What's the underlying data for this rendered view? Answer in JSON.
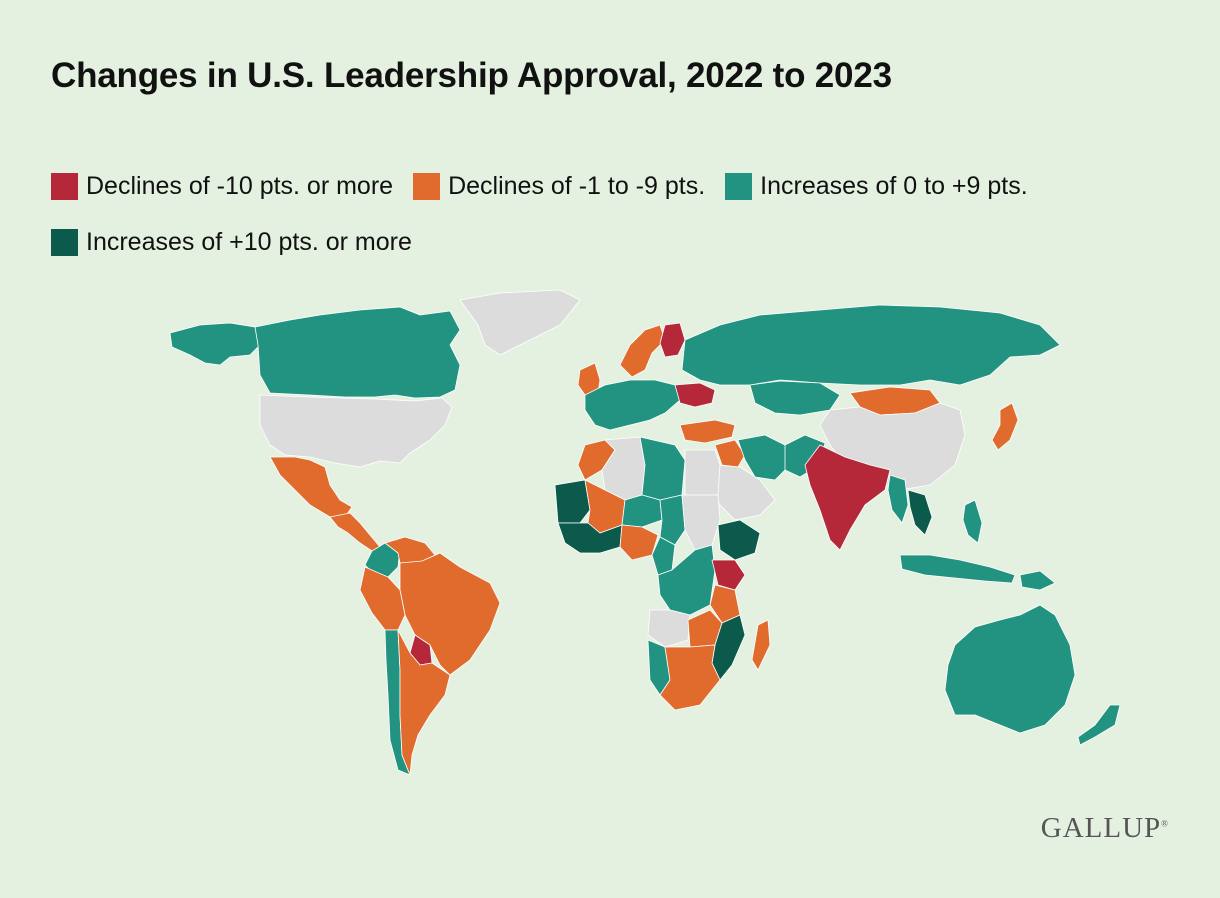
{
  "title": "Changes in U.S. Leadership Approval, 2022 to 2023",
  "legend": [
    {
      "label": "Declines of -10 pts. or more",
      "color": "#b5283a"
    },
    {
      "label": "Declines of -1 to -9 pts.",
      "color": "#e06b2d"
    },
    {
      "label": "Increases of 0 to +9 pts.",
      "color": "#219380"
    },
    {
      "label": "Increases of +10 pts. or more",
      "color": "#0b5a4c"
    }
  ],
  "no_data_color": "#dcdcdc",
  "logo": "GALLUP",
  "regions": [
    {
      "name": "alaska",
      "category": "increase_small"
    },
    {
      "name": "canada",
      "category": "increase_small"
    },
    {
      "name": "united-states",
      "category": "no_data"
    },
    {
      "name": "greenland",
      "category": "no_data"
    },
    {
      "name": "mexico",
      "category": "decline_small"
    },
    {
      "name": "central-america",
      "category": "decline_small"
    },
    {
      "name": "colombia",
      "category": "increase_small"
    },
    {
      "name": "venezuela",
      "category": "decline_small"
    },
    {
      "name": "brazil",
      "category": "decline_small"
    },
    {
      "name": "peru",
      "category": "decline_small"
    },
    {
      "name": "paraguay",
      "category": "decline_large"
    },
    {
      "name": "chile",
      "category": "increase_small"
    },
    {
      "name": "argentina",
      "category": "decline_small"
    },
    {
      "name": "united-kingdom",
      "category": "decline_small"
    },
    {
      "name": "scandinavia",
      "category": "decline_small"
    },
    {
      "name": "finland",
      "category": "decline_large"
    },
    {
      "name": "western-europe",
      "category": "increase_small"
    },
    {
      "name": "ukraine",
      "category": "decline_large"
    },
    {
      "name": "turkey",
      "category": "decline_small"
    },
    {
      "name": "russia",
      "category": "increase_small"
    },
    {
      "name": "kazakhstan",
      "category": "increase_small"
    },
    {
      "name": "mongolia",
      "category": "decline_small"
    },
    {
      "name": "china",
      "category": "no_data"
    },
    {
      "name": "japan",
      "category": "decline_small"
    },
    {
      "name": "iran",
      "category": "increase_small"
    },
    {
      "name": "iraq",
      "category": "decline_small"
    },
    {
      "name": "saudi-arabia",
      "category": "no_data"
    },
    {
      "name": "pakistan",
      "category": "increase_small"
    },
    {
      "name": "india",
      "category": "decline_large"
    },
    {
      "name": "myanmar",
      "category": "increase_small"
    },
    {
      "name": "thailand",
      "category": "increase_large"
    },
    {
      "name": "indonesia",
      "category": "increase_small"
    },
    {
      "name": "philippines",
      "category": "increase_small"
    },
    {
      "name": "papua-new-guinea",
      "category": "increase_small"
    },
    {
      "name": "morocco",
      "category": "decline_small"
    },
    {
      "name": "algeria",
      "category": "no_data"
    },
    {
      "name": "libya",
      "category": "increase_small"
    },
    {
      "name": "egypt",
      "category": "no_data"
    },
    {
      "name": "mauritania",
      "category": "increase_large"
    },
    {
      "name": "mali",
      "category": "decline_small"
    },
    {
      "name": "niger",
      "category": "increase_small"
    },
    {
      "name": "chad",
      "category": "increase_small"
    },
    {
      "name": "sudan",
      "category": "no_data"
    },
    {
      "name": "ethiopia",
      "category": "increase_large"
    },
    {
      "name": "west-africa-coast",
      "category": "increase_large"
    },
    {
      "name": "nigeria",
      "category": "decline_small"
    },
    {
      "name": "cameroon",
      "category": "increase_small"
    },
    {
      "name": "dr-congo",
      "category": "increase_small"
    },
    {
      "name": "kenya",
      "category": "decline_large"
    },
    {
      "name": "tanzania",
      "category": "decline_small"
    },
    {
      "name": "angola",
      "category": "no_data"
    },
    {
      "name": "zambia",
      "category": "decline_small"
    },
    {
      "name": "mozambique",
      "category": "increase_large"
    },
    {
      "name": "namibia",
      "category": "increase_small"
    },
    {
      "name": "south-africa",
      "category": "decline_small"
    },
    {
      "name": "madagascar",
      "category": "decline_small"
    },
    {
      "name": "australia",
      "category": "increase_small"
    },
    {
      "name": "new-zealand",
      "category": "increase_small"
    }
  ]
}
